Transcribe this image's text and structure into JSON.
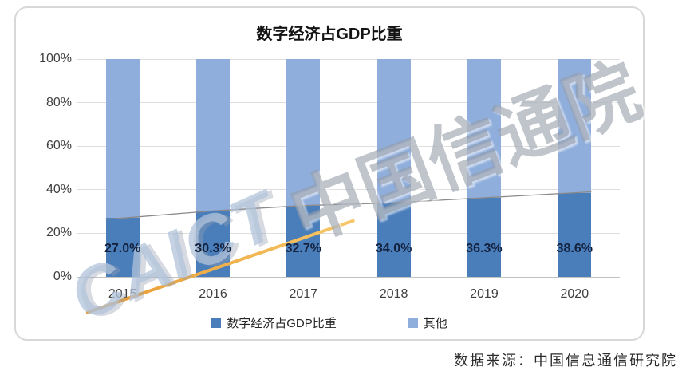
{
  "title": "数字经济占GDP比重",
  "source": "数据来源：中国信息通信研究院",
  "watermarks": {
    "main": "中国信通院",
    "logo": "CAICT"
  },
  "colors": {
    "series_primary": "#4A7EBB",
    "series_secondary": "#8FAEDC",
    "trend_line": "#8a8a8a",
    "swoosh_orange": "#ef9f35",
    "watermark_gray": "#9299a6",
    "watermark_blue": "#b1c3db"
  },
  "chart_data": {
    "type": "bar",
    "stacked": true,
    "title": "数字经济占GDP比重",
    "categories": [
      "2015",
      "2016",
      "2017",
      "2018",
      "2019",
      "2020"
    ],
    "series": [
      {
        "name": "数字经济占GDP比重",
        "color": "#4A7EBB",
        "values": [
          27.0,
          30.3,
          32.7,
          34.0,
          36.3,
          38.6
        ],
        "labels": [
          "27.0%",
          "30.3%",
          "32.7%",
          "34.0%",
          "36.3%",
          "38.6%"
        ]
      },
      {
        "name": "其他",
        "color": "#8FAEDC",
        "values": [
          73.0,
          69.7,
          67.3,
          66.0,
          63.7,
          61.4
        ]
      }
    ],
    "overlay_line": {
      "on_series": "数字经济占GDP比重",
      "color": "#8a8a8a"
    },
    "ylim": [
      0,
      100
    ],
    "yticks": [
      "0%",
      "20%",
      "40%",
      "60%",
      "80%",
      "100%"
    ],
    "grid": true,
    "legend_position": "bottom"
  }
}
